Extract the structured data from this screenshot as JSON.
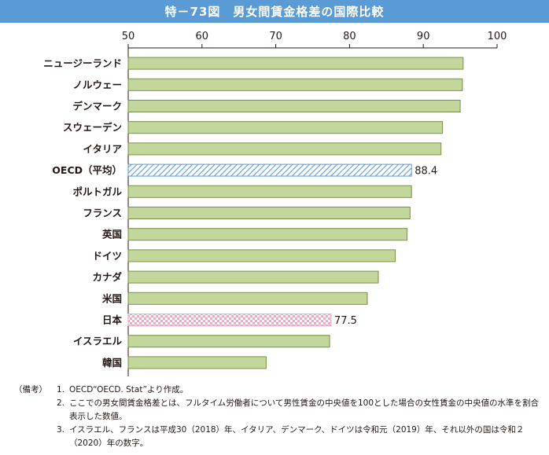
{
  "title": "特－73図　男女間賃金格差の国際比較",
  "chart_data": {
    "type": "bar",
    "orientation": "horizontal",
    "categories": [
      "ニュージーランド",
      "ノルウェー",
      "デンマーク",
      "スウェーデン",
      "イタリア",
      "OECD（平均）",
      "ポルトガル",
      "フランス",
      "英国",
      "ドイツ",
      "カナダ",
      "米国",
      "日本",
      "イスラエル",
      "韓国"
    ],
    "values": [
      95.4,
      95.3,
      95.0,
      92.6,
      92.4,
      88.4,
      88.4,
      88.2,
      87.8,
      86.2,
      83.9,
      82.4,
      77.5,
      77.3,
      68.7
    ],
    "highlight": {
      "OECD（平均）": "hatch-blue",
      "日本": "check-pink"
    },
    "data_labels": {
      "OECD（平均）": "88.4",
      "日本": "77.5"
    },
    "xlim": [
      50,
      100
    ],
    "xticks": [
      "50",
      "60",
      "70",
      "80",
      "90",
      "100"
    ],
    "tick_position": "top",
    "grid": false,
    "colors": {
      "bar": "#c3d69b",
      "bar_edge": "#7a8f46",
      "hatch": "#5b9bd5",
      "check": "#f4a6c6",
      "title_bg": "#5b9bd5"
    }
  },
  "notes": {
    "head": "（備考）",
    "items": [
      {
        "num": "1.",
        "text": "OECD“OECD. Stat”より作成。"
      },
      {
        "num": "2.",
        "text": "ここでの男女間賃金格差とは、フルタイム労働者について男性賃金の中央値を100とした場合の女性賃金の中央値の水準を割合表示した数値。"
      },
      {
        "num": "3.",
        "text": "イスラエル、フランスは平成30（2018）年、イタリア、デンマーク、ドイツは令和元（2019）年、それ以外の国は令和２（2020）年の数字。"
      }
    ]
  }
}
